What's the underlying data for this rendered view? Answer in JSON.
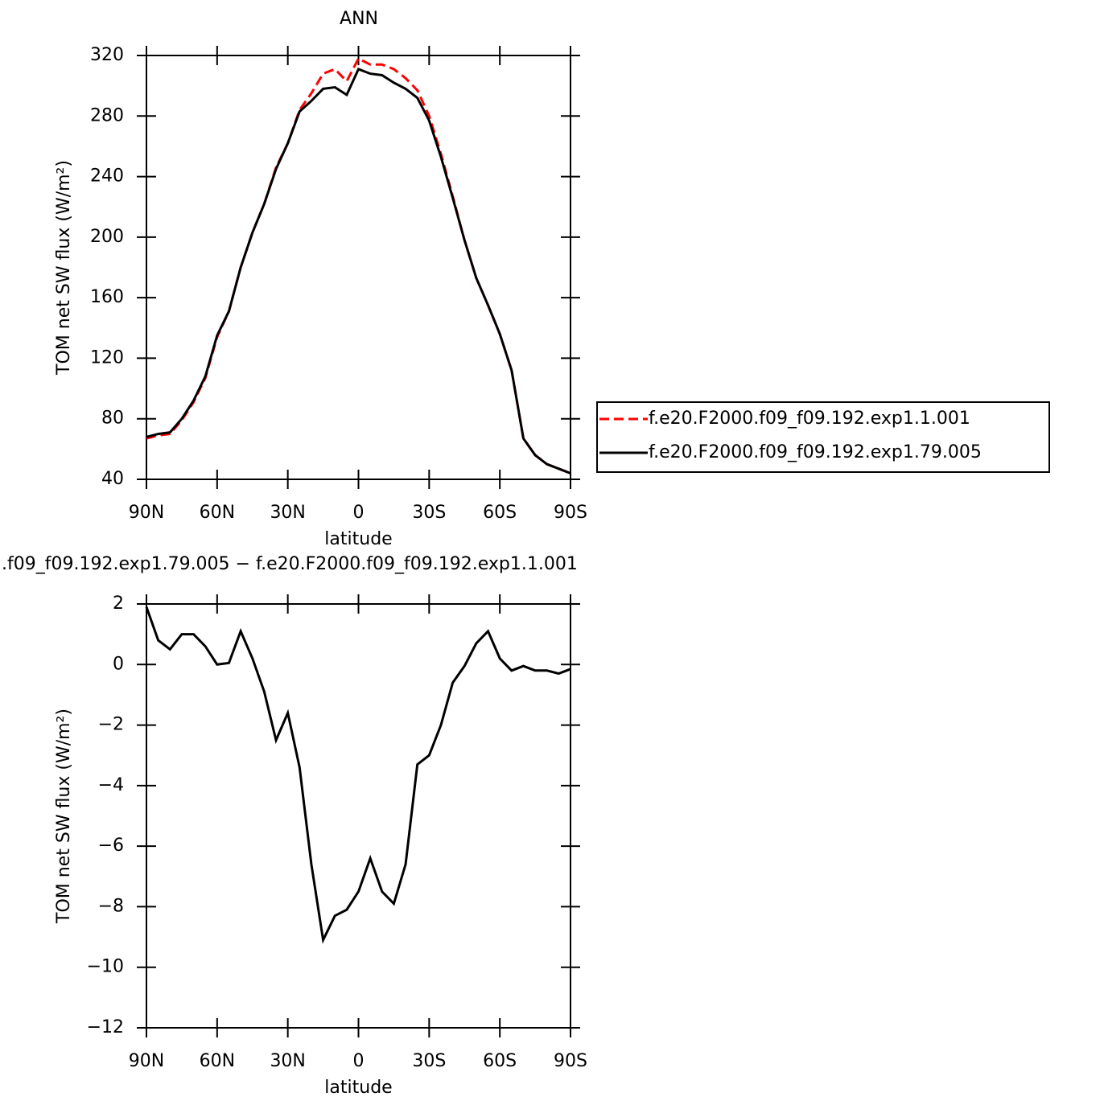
{
  "chart_data": [
    {
      "type": "line",
      "title": "ANN",
      "xlabel": "latitude",
      "ylabel": "TOM net SW flux (W/m²)",
      "x": [
        90,
        85,
        80,
        75,
        70,
        65,
        60,
        55,
        50,
        45,
        40,
        35,
        30,
        25,
        20,
        15,
        10,
        5,
        0,
        -5,
        -10,
        -15,
        -20,
        -25,
        -30,
        -35,
        -40,
        -45,
        -50,
        -55,
        -60,
        -65,
        -70,
        -75,
        -80,
        -85,
        -90
      ],
      "xlim": [
        90,
        -90
      ],
      "xticks": [
        {
          "value": 90,
          "label": "90N"
        },
        {
          "value": 60,
          "label": "60N"
        },
        {
          "value": 30,
          "label": "30N"
        },
        0,
        {
          "value": -30,
          "label": "30S"
        },
        {
          "value": -60,
          "label": "60S"
        },
        {
          "value": -90,
          "label": "90S"
        }
      ],
      "ylim": [
        40,
        320
      ],
      "yticks": [
        40,
        80,
        120,
        160,
        200,
        240,
        280,
        320
      ],
      "legend": "right",
      "series": [
        {
          "name": "f.e20.F2000.f09_f09.192.exp1.1.001",
          "color": "#ff0000",
          "dash": true,
          "values": [
            67,
            69,
            70,
            79,
            91,
            107,
            134,
            151,
            180,
            203,
            222,
            246,
            262,
            284,
            295,
            308,
            311,
            303,
            318,
            314,
            314,
            311,
            305,
            297,
            280,
            255,
            227,
            198,
            173,
            155,
            136,
            112,
            67,
            56,
            50,
            47,
            44
          ]
        },
        {
          "name": "f.e20.F2000.f09_f09.192.exp1.79.005",
          "color": "#000000",
          "dash": false,
          "values": [
            68,
            70,
            71,
            80,
            92,
            108,
            135,
            151,
            180,
            203,
            222,
            245,
            262,
            283,
            290,
            298,
            299,
            294,
            311,
            308,
            307,
            302,
            298,
            292,
            277,
            253,
            226,
            198,
            173,
            155,
            136,
            112,
            67,
            56,
            50,
            47,
            44
          ]
        }
      ]
    },
    {
      "type": "line",
      "title": ".f09_f09.192.exp1.79.005 − f.e20.F2000.f09_f09.192.exp1.1.001",
      "xlabel": "latitude",
      "ylabel": "TOM net SW flux (W/m²)",
      "x": [
        90,
        85,
        80,
        75,
        70,
        65,
        60,
        55,
        50,
        45,
        40,
        35,
        30,
        25,
        20,
        15,
        10,
        5,
        0,
        -5,
        -10,
        -15,
        -20,
        -25,
        -30,
        -35,
        -40,
        -45,
        -50,
        -55,
        -60,
        -65,
        -70,
        -75,
        -80,
        -85,
        -90
      ],
      "xlim": [
        90,
        -90
      ],
      "xticks": [
        {
          "value": 90,
          "label": "90N"
        },
        {
          "value": 60,
          "label": "60N"
        },
        {
          "value": 30,
          "label": "30N"
        },
        0,
        {
          "value": -30,
          "label": "30S"
        },
        {
          "value": -60,
          "label": "60S"
        },
        {
          "value": -90,
          "label": "90S"
        }
      ],
      "ylim": [
        -12,
        2
      ],
      "yticks": [
        2,
        0,
        {
          "value": -2,
          "label": "−2"
        },
        {
          "value": -4,
          "label": "−4"
        },
        {
          "value": -6,
          "label": "−6"
        },
        {
          "value": -8,
          "label": "−8"
        },
        {
          "value": -10,
          "label": "−10"
        },
        {
          "value": -12,
          "label": "−12"
        }
      ],
      "series": [
        {
          "color": "#000000",
          "dash": false,
          "values": [
            1.9,
            0.8,
            0.5,
            1.0,
            1.0,
            0.6,
            0.0,
            0.05,
            1.1,
            0.2,
            -0.9,
            -2.5,
            -1.6,
            -3.4,
            -6.6,
            -9.1,
            -8.3,
            -8.1,
            -7.5,
            -6.4,
            -7.5,
            -7.9,
            -6.6,
            -3.3,
            -3.0,
            -2.0,
            -0.6,
            -0.05,
            0.7,
            1.1,
            0.2,
            -0.2,
            -0.05,
            -0.2,
            -0.2,
            -0.3,
            -0.15
          ]
        }
      ]
    }
  ]
}
